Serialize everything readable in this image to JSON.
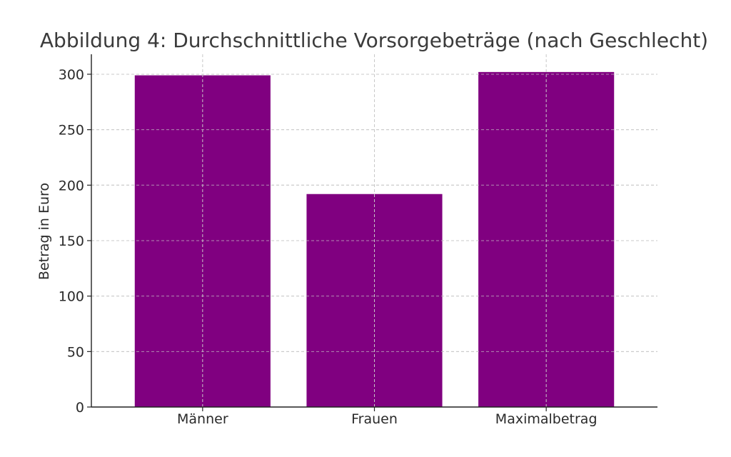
{
  "chart_data": {
    "type": "bar",
    "title": "Abbildung 4: Durchschnittliche Vorsorgebeträge (nach Geschlecht)",
    "xlabel": "",
    "ylabel": "Betrag in Euro",
    "categories": [
      "Männer",
      "Frauen",
      "Maximalbetrag"
    ],
    "values": [
      299,
      192,
      302
    ],
    "ylim": [
      0,
      318
    ],
    "yticks": [
      0,
      50,
      100,
      150,
      200,
      250,
      300
    ],
    "grid": true,
    "bar_color": "#800080"
  }
}
